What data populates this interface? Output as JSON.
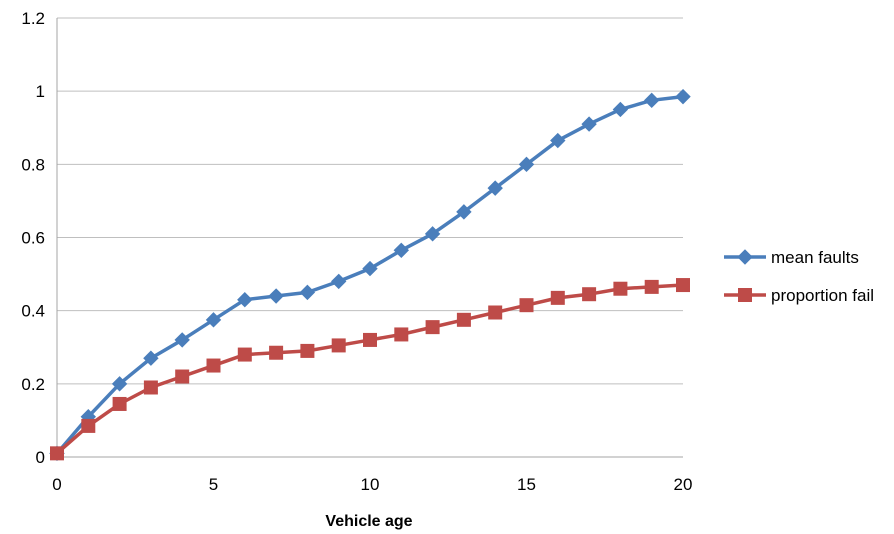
{
  "chart_data": {
    "type": "line",
    "title": "",
    "xlabel": "Vehicle age",
    "ylabel": "",
    "xlim": [
      0,
      20
    ],
    "ylim": [
      0,
      1.2
    ],
    "x_ticks": [
      0,
      5,
      10,
      15,
      20
    ],
    "y_ticks": [
      0,
      0.2,
      0.4,
      0.6,
      0.8,
      1,
      1.2
    ],
    "grid": "horizontal",
    "legend_position": "right",
    "x": [
      0,
      1,
      2,
      3,
      4,
      5,
      6,
      7,
      8,
      9,
      10,
      11,
      12,
      13,
      14,
      15,
      16,
      17,
      18,
      19,
      20
    ],
    "series": [
      {
        "name": "mean faults",
        "color": "#4a7ebb",
        "marker": "diamond",
        "values": [
          0.01,
          0.11,
          0.2,
          0.27,
          0.32,
          0.375,
          0.43,
          0.44,
          0.45,
          0.48,
          0.515,
          0.565,
          0.61,
          0.67,
          0.735,
          0.8,
          0.865,
          0.91,
          0.95,
          0.975,
          0.985
        ]
      },
      {
        "name": "proportion fail",
        "color": "#be4b48",
        "marker": "square",
        "values": [
          0.01,
          0.085,
          0.145,
          0.19,
          0.22,
          0.25,
          0.28,
          0.285,
          0.29,
          0.305,
          0.32,
          0.335,
          0.355,
          0.375,
          0.395,
          0.415,
          0.435,
          0.445,
          0.46,
          0.465,
          0.47
        ]
      }
    ]
  }
}
